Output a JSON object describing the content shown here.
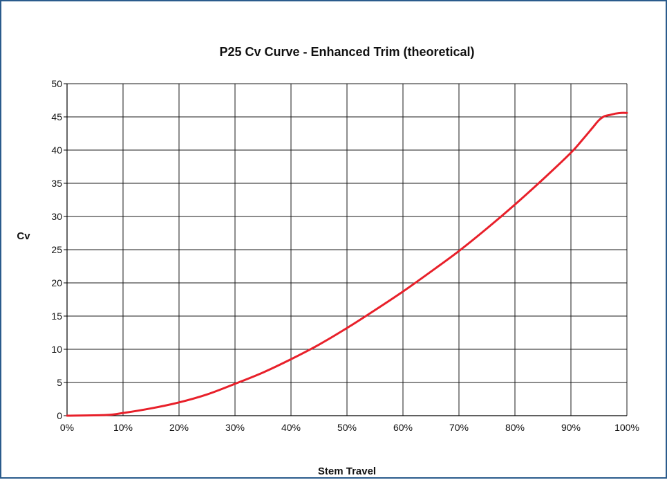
{
  "chart_data": {
    "type": "line",
    "title": "P25 Cv Curve - Enhanced Trim (theoretical)",
    "xlabel": "Stem Travel",
    "ylabel": "Cv",
    "xlim": [
      0,
      100
    ],
    "ylim": [
      0,
      50
    ],
    "x_ticks": [
      0,
      10,
      20,
      30,
      40,
      50,
      60,
      70,
      80,
      90,
      100
    ],
    "x_tick_labels": [
      "0%",
      "10%",
      "20%",
      "30%",
      "40%",
      "50%",
      "60%",
      "70%",
      "80%",
      "90%",
      "100%"
    ],
    "y_ticks": [
      0,
      5,
      10,
      15,
      20,
      25,
      30,
      35,
      40,
      45,
      50
    ],
    "y_tick_labels": [
      "0",
      "5",
      "10",
      "15",
      "20",
      "25",
      "30",
      "35",
      "40",
      "45",
      "50"
    ],
    "grid": true,
    "legend": "none",
    "series": [
      {
        "color": "#e8202a",
        "x": [
          0,
          7,
          10,
          15,
          20,
          25,
          30,
          35,
          40,
          45,
          50,
          55,
          60,
          65,
          70,
          75,
          80,
          85,
          90,
          92,
          94,
          95,
          96,
          97,
          98,
          99,
          100
        ],
        "y": [
          0,
          0.1,
          0.4,
          1.1,
          2.0,
          3.2,
          4.8,
          6.5,
          8.5,
          10.7,
          13.2,
          15.9,
          18.7,
          21.7,
          24.8,
          28.2,
          31.8,
          35.6,
          39.6,
          41.5,
          43.5,
          44.5,
          45.1,
          45.3,
          45.5,
          45.6,
          45.6
        ]
      }
    ]
  }
}
